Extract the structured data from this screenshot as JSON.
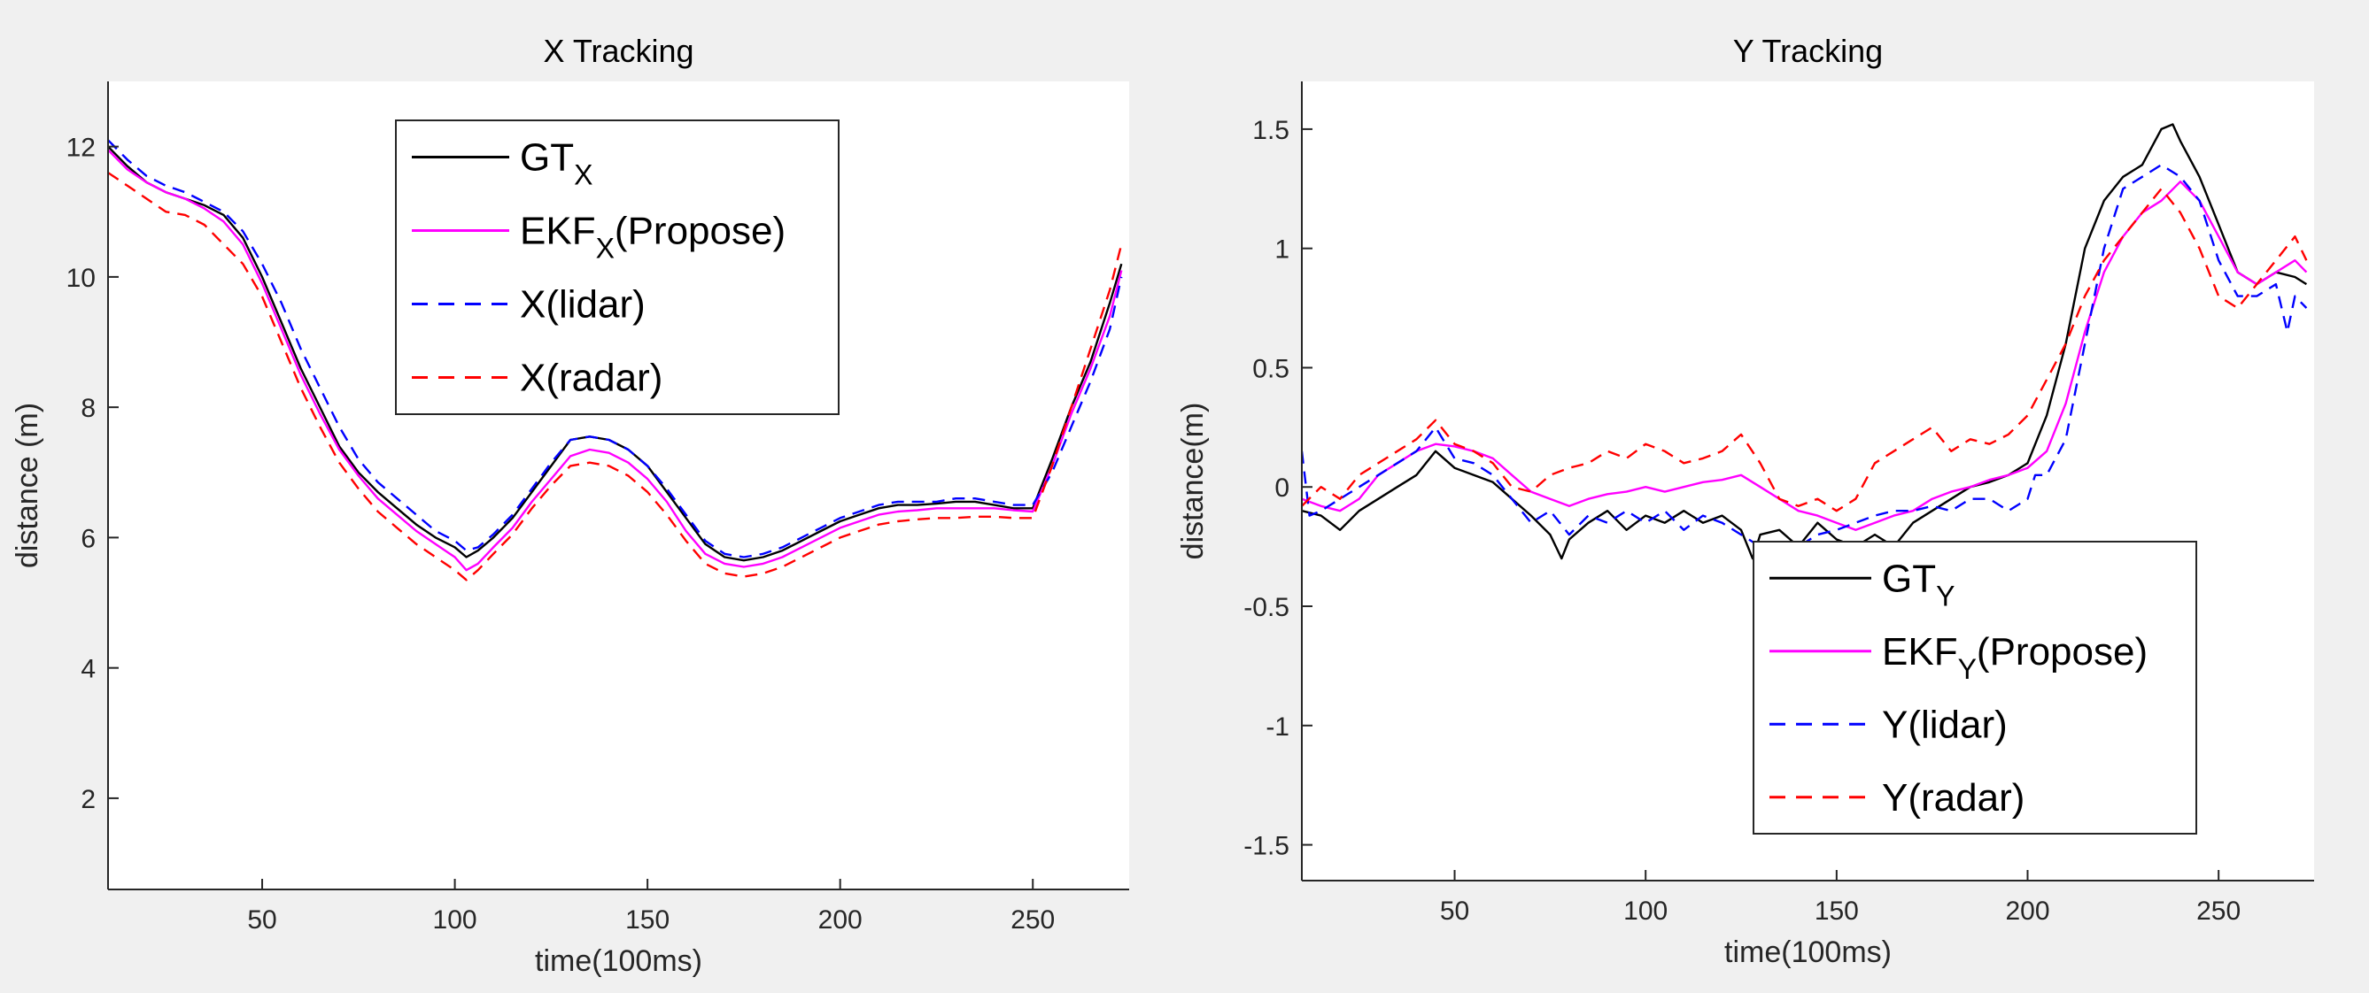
{
  "chart_data": [
    {
      "type": "line",
      "title": "X Tracking",
      "xlabel": "time(100ms)",
      "ylabel": "distance (m)",
      "xlim": [
        10,
        275
      ],
      "ylim": [
        0.6,
        13
      ],
      "xticks": [
        50,
        100,
        150,
        200,
        250
      ],
      "yticks": [
        2,
        4,
        6,
        8,
        10,
        12
      ],
      "grid": false,
      "legend_position": "top-center",
      "legend": [
        {
          "series": "GT",
          "main": "GT",
          "sub": "X",
          "after": ""
        },
        {
          "series": "EKF",
          "main": "EKF",
          "sub": "X",
          "after": "(Propose)"
        },
        {
          "series": "lidar",
          "main": "X(lidar)",
          "sub": "",
          "after": ""
        },
        {
          "series": "radar",
          "main": "X(radar)",
          "sub": "",
          "after": ""
        }
      ],
      "series": [
        {
          "key": "GT",
          "color": "#000000",
          "dash": "",
          "x": [
            10,
            15,
            20,
            25,
            30,
            35,
            40,
            45,
            50,
            55,
            60,
            65,
            70,
            75,
            80,
            85,
            90,
            95,
            100,
            103,
            106,
            110,
            115,
            120,
            125,
            130,
            135,
            140,
            145,
            150,
            155,
            160,
            165,
            170,
            175,
            180,
            185,
            190,
            195,
            200,
            205,
            210,
            215,
            220,
            225,
            230,
            235,
            240,
            245,
            250,
            255,
            260,
            265,
            270,
            273
          ],
          "y": [
            12.0,
            11.7,
            11.45,
            11.3,
            11.2,
            11.1,
            10.95,
            10.6,
            10.0,
            9.3,
            8.6,
            8.0,
            7.4,
            7.0,
            6.7,
            6.45,
            6.2,
            6.0,
            5.85,
            5.7,
            5.8,
            6.0,
            6.3,
            6.7,
            7.1,
            7.5,
            7.55,
            7.5,
            7.35,
            7.1,
            6.7,
            6.3,
            5.9,
            5.7,
            5.65,
            5.7,
            5.8,
            5.95,
            6.1,
            6.25,
            6.35,
            6.45,
            6.5,
            6.5,
            6.52,
            6.55,
            6.55,
            6.5,
            6.45,
            6.45,
            7.2,
            8.0,
            8.7,
            9.6,
            10.2
          ]
        },
        {
          "key": "EKF",
          "color": "#ff00ff",
          "dash": "",
          "x": [
            10,
            15,
            20,
            25,
            30,
            35,
            40,
            45,
            50,
            55,
            60,
            65,
            70,
            75,
            80,
            85,
            90,
            95,
            100,
            103,
            106,
            110,
            115,
            120,
            125,
            130,
            135,
            140,
            145,
            150,
            155,
            160,
            165,
            170,
            175,
            180,
            185,
            190,
            195,
            200,
            205,
            210,
            215,
            220,
            225,
            230,
            235,
            240,
            245,
            250,
            255,
            260,
            265,
            270,
            273
          ],
          "y": [
            11.95,
            11.65,
            11.45,
            11.3,
            11.2,
            11.05,
            10.85,
            10.5,
            9.9,
            9.2,
            8.5,
            7.9,
            7.35,
            6.95,
            6.6,
            6.35,
            6.1,
            5.9,
            5.7,
            5.5,
            5.6,
            5.85,
            6.15,
            6.55,
            6.9,
            7.25,
            7.35,
            7.3,
            7.15,
            6.9,
            6.55,
            6.1,
            5.75,
            5.6,
            5.55,
            5.6,
            5.7,
            5.85,
            6.0,
            6.15,
            6.25,
            6.35,
            6.4,
            6.42,
            6.45,
            6.45,
            6.45,
            6.45,
            6.42,
            6.4,
            7.1,
            7.9,
            8.6,
            9.4,
            10.1
          ]
        },
        {
          "key": "lidar",
          "color": "#0000ff",
          "dash": "14,9",
          "x": [
            10,
            15,
            20,
            25,
            30,
            35,
            40,
            45,
            50,
            55,
            60,
            65,
            70,
            75,
            80,
            85,
            90,
            95,
            100,
            103,
            106,
            110,
            115,
            120,
            125,
            130,
            135,
            140,
            145,
            150,
            155,
            160,
            165,
            170,
            175,
            180,
            185,
            190,
            195,
            200,
            205,
            210,
            215,
            220,
            225,
            230,
            235,
            240,
            245,
            250,
            255,
            260,
            265,
            270,
            273
          ],
          "y": [
            12.1,
            11.8,
            11.55,
            11.4,
            11.3,
            11.15,
            11.0,
            10.7,
            10.2,
            9.6,
            8.9,
            8.3,
            7.7,
            7.2,
            6.85,
            6.6,
            6.35,
            6.1,
            5.95,
            5.8,
            5.85,
            6.05,
            6.35,
            6.75,
            7.15,
            7.5,
            7.55,
            7.5,
            7.35,
            7.1,
            6.75,
            6.35,
            5.95,
            5.75,
            5.7,
            5.75,
            5.85,
            6.0,
            6.15,
            6.3,
            6.4,
            6.5,
            6.55,
            6.55,
            6.55,
            6.6,
            6.6,
            6.55,
            6.5,
            6.5,
            7.0,
            7.7,
            8.4,
            9.2,
            10.0
          ]
        },
        {
          "key": "radar",
          "color": "#ff0000",
          "dash": "14,9",
          "x": [
            10,
            15,
            20,
            25,
            30,
            35,
            40,
            45,
            50,
            55,
            60,
            65,
            70,
            75,
            80,
            85,
            90,
            95,
            100,
            103,
            106,
            110,
            115,
            120,
            125,
            130,
            135,
            140,
            145,
            150,
            155,
            160,
            165,
            170,
            175,
            180,
            185,
            190,
            195,
            200,
            205,
            210,
            215,
            220,
            225,
            230,
            235,
            240,
            245,
            250,
            255,
            260,
            265,
            270,
            273
          ],
          "y": [
            11.6,
            11.4,
            11.2,
            11.0,
            10.95,
            10.8,
            10.5,
            10.2,
            9.7,
            9.0,
            8.3,
            7.7,
            7.15,
            6.75,
            6.4,
            6.15,
            5.9,
            5.7,
            5.5,
            5.35,
            5.5,
            5.75,
            6.05,
            6.45,
            6.8,
            7.1,
            7.15,
            7.1,
            6.95,
            6.7,
            6.35,
            5.95,
            5.6,
            5.45,
            5.4,
            5.45,
            5.55,
            5.7,
            5.85,
            6.0,
            6.1,
            6.2,
            6.25,
            6.28,
            6.3,
            6.3,
            6.32,
            6.32,
            6.3,
            6.3,
            7.1,
            8.0,
            8.9,
            9.8,
            10.5
          ]
        }
      ]
    },
    {
      "type": "line",
      "title": "Y Tracking",
      "xlabel": "time(100ms)",
      "ylabel": "distance(m)",
      "xlim": [
        10,
        275
      ],
      "ylim": [
        -1.65,
        1.7
      ],
      "xticks": [
        50,
        100,
        150,
        200,
        250
      ],
      "yticks": [
        -1.5,
        -1,
        -0.5,
        0,
        0.5,
        1,
        1.5
      ],
      "grid": false,
      "legend_position": "bottom-right",
      "legend": [
        {
          "series": "GT",
          "main": "GT",
          "sub": "Y",
          "after": ""
        },
        {
          "series": "EKF",
          "main": "EKF",
          "sub": "Y",
          "after": "(Propose)"
        },
        {
          "series": "lidar",
          "main": "Y(lidar)",
          "sub": "",
          "after": ""
        },
        {
          "series": "radar",
          "main": "Y(radar)",
          "sub": "",
          "after": ""
        }
      ],
      "series": [
        {
          "key": "GT",
          "color": "#000000",
          "dash": "",
          "x": [
            10,
            15,
            20,
            25,
            30,
            35,
            40,
            45,
            50,
            55,
            60,
            65,
            70,
            75,
            78,
            80,
            85,
            90,
            95,
            100,
            105,
            110,
            115,
            120,
            125,
            128,
            130,
            135,
            140,
            145,
            150,
            155,
            160,
            165,
            170,
            175,
            180,
            185,
            190,
            195,
            200,
            205,
            210,
            215,
            220,
            225,
            230,
            235,
            238,
            240,
            245,
            250,
            255,
            260,
            265,
            270,
            273
          ],
          "y": [
            -0.1,
            -0.12,
            -0.18,
            -0.1,
            -0.05,
            0.0,
            0.05,
            0.15,
            0.08,
            0.05,
            0.02,
            -0.05,
            -0.12,
            -0.2,
            -0.3,
            -0.22,
            -0.15,
            -0.1,
            -0.18,
            -0.12,
            -0.15,
            -0.1,
            -0.15,
            -0.12,
            -0.18,
            -0.3,
            -0.2,
            -0.18,
            -0.25,
            -0.15,
            -0.22,
            -0.25,
            -0.2,
            -0.25,
            -0.15,
            -0.1,
            -0.05,
            0.0,
            0.02,
            0.05,
            0.1,
            0.3,
            0.6,
            1.0,
            1.2,
            1.3,
            1.35,
            1.5,
            1.52,
            1.45,
            1.3,
            1.1,
            0.9,
            0.85,
            0.9,
            0.88,
            0.85
          ]
        },
        {
          "key": "EKF",
          "color": "#ff00ff",
          "dash": "",
          "x": [
            10,
            15,
            20,
            25,
            30,
            35,
            40,
            45,
            50,
            55,
            60,
            65,
            70,
            75,
            80,
            85,
            90,
            95,
            100,
            105,
            110,
            115,
            120,
            125,
            130,
            135,
            140,
            145,
            150,
            155,
            160,
            165,
            170,
            175,
            180,
            185,
            190,
            195,
            200,
            205,
            210,
            215,
            220,
            225,
            230,
            235,
            240,
            245,
            250,
            255,
            260,
            265,
            270,
            273
          ],
          "y": [
            -0.05,
            -0.08,
            -0.1,
            -0.05,
            0.05,
            0.1,
            0.15,
            0.18,
            0.17,
            0.15,
            0.12,
            0.05,
            -0.02,
            -0.05,
            -0.08,
            -0.05,
            -0.03,
            -0.02,
            0.0,
            -0.02,
            0.0,
            0.02,
            0.03,
            0.05,
            0.0,
            -0.05,
            -0.1,
            -0.12,
            -0.15,
            -0.18,
            -0.15,
            -0.12,
            -0.1,
            -0.05,
            -0.02,
            0.0,
            0.03,
            0.05,
            0.08,
            0.15,
            0.35,
            0.65,
            0.9,
            1.05,
            1.15,
            1.2,
            1.28,
            1.2,
            1.05,
            0.9,
            0.85,
            0.9,
            0.95,
            0.9
          ]
        },
        {
          "key": "lidar",
          "color": "#0000ff",
          "dash": "14,9",
          "x": [
            10,
            12,
            15,
            20,
            25,
            30,
            35,
            40,
            45,
            50,
            55,
            60,
            65,
            70,
            75,
            80,
            85,
            90,
            95,
            100,
            105,
            110,
            115,
            120,
            125,
            130,
            135,
            140,
            145,
            150,
            155,
            160,
            165,
            170,
            175,
            180,
            185,
            190,
            195,
            200,
            202,
            205,
            210,
            215,
            220,
            225,
            230,
            235,
            240,
            245,
            250,
            255,
            260,
            265,
            268,
            270,
            273
          ],
          "y": [
            0.15,
            -0.12,
            -0.1,
            -0.05,
            0.0,
            0.05,
            0.1,
            0.15,
            0.25,
            0.12,
            0.1,
            0.05,
            -0.05,
            -0.15,
            -0.1,
            -0.2,
            -0.12,
            -0.15,
            -0.1,
            -0.15,
            -0.1,
            -0.18,
            -0.12,
            -0.15,
            -0.2,
            -0.25,
            -0.3,
            -0.25,
            -0.2,
            -0.18,
            -0.15,
            -0.12,
            -0.1,
            -0.1,
            -0.08,
            -0.1,
            -0.05,
            -0.05,
            -0.1,
            -0.05,
            0.05,
            0.05,
            0.2,
            0.6,
            1.0,
            1.25,
            1.3,
            1.35,
            1.3,
            1.2,
            0.95,
            0.8,
            0.8,
            0.85,
            0.65,
            0.8,
            0.75
          ]
        },
        {
          "key": "radar",
          "color": "#ff0000",
          "dash": "14,9",
          "x": [
            10,
            15,
            20,
            25,
            30,
            35,
            40,
            45,
            50,
            55,
            60,
            65,
            70,
            75,
            80,
            85,
            90,
            95,
            100,
            105,
            110,
            115,
            120,
            125,
            130,
            135,
            140,
            145,
            150,
            155,
            160,
            165,
            170,
            175,
            180,
            185,
            190,
            195,
            200,
            205,
            210,
            215,
            220,
            225,
            230,
            235,
            240,
            245,
            250,
            255,
            260,
            265,
            270,
            273
          ],
          "y": [
            -0.08,
            0.0,
            -0.05,
            0.05,
            0.1,
            0.15,
            0.2,
            0.28,
            0.18,
            0.15,
            0.1,
            0.0,
            -0.02,
            0.05,
            0.08,
            0.1,
            0.15,
            0.12,
            0.18,
            0.15,
            0.1,
            0.12,
            0.15,
            0.22,
            0.1,
            -0.05,
            -0.08,
            -0.05,
            -0.1,
            -0.05,
            0.1,
            0.15,
            0.2,
            0.25,
            0.15,
            0.2,
            0.18,
            0.22,
            0.3,
            0.45,
            0.6,
            0.8,
            0.95,
            1.05,
            1.15,
            1.25,
            1.15,
            1.0,
            0.8,
            0.75,
            0.85,
            0.95,
            1.05,
            0.95
          ]
        }
      ]
    }
  ]
}
